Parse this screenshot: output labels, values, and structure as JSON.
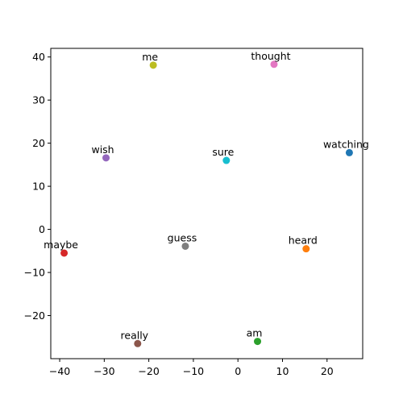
{
  "chart_data": {
    "type": "scatter",
    "title": "",
    "xlabel": "",
    "ylabel": "",
    "xlim": [
      -42,
      28
    ],
    "ylim": [
      -30,
      42
    ],
    "grid": false,
    "legend": "none",
    "xticks": [
      -40,
      -30,
      -20,
      -10,
      0,
      10,
      20
    ],
    "yticks": [
      -20,
      -10,
      0,
      10,
      20,
      30,
      40
    ],
    "points": [
      {
        "label": "watching",
        "x": 25.0,
        "y": 17.8,
        "color": "#1f77b4"
      },
      {
        "label": "heard",
        "x": 15.3,
        "y": -4.5,
        "color": "#ff7f0e"
      },
      {
        "label": "am",
        "x": 4.4,
        "y": -26.0,
        "color": "#2ca02c"
      },
      {
        "label": "maybe",
        "x": -39.0,
        "y": -5.5,
        "color": "#d62728"
      },
      {
        "label": "wish",
        "x": -29.6,
        "y": 16.6,
        "color": "#9467bd"
      },
      {
        "label": "really",
        "x": -22.5,
        "y": -26.5,
        "color": "#8c564b"
      },
      {
        "label": "thought",
        "x": 8.1,
        "y": 38.3,
        "color": "#e377c2"
      },
      {
        "label": "guess",
        "x": -11.8,
        "y": -3.9,
        "color": "#7f7f7f"
      },
      {
        "label": "me",
        "x": -19.0,
        "y": 38.1,
        "color": "#bcbd22"
      },
      {
        "label": "sure",
        "x": -2.6,
        "y": 16.0,
        "color": "#17becf"
      }
    ]
  }
}
